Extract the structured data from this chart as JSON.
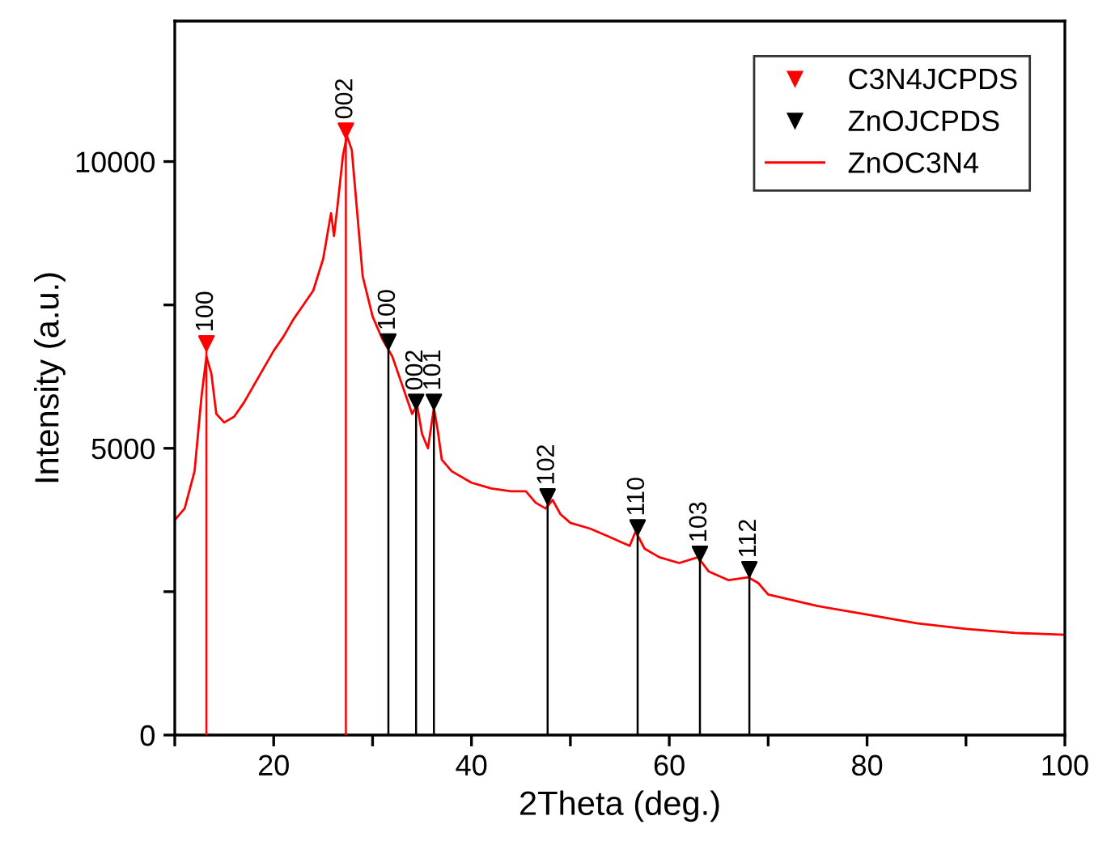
{
  "chart_data": {
    "type": "line",
    "xlabel": "2Theta (deg.)",
    "ylabel": "Intensity (a.u.)",
    "xlim": [
      10,
      100
    ],
    "xticks": [
      {
        "value": 10,
        "label": null
      },
      20,
      {
        "value": 30,
        "label": null
      },
      40,
      {
        "value": 50,
        "label": null
      },
      60,
      {
        "value": 70,
        "label": null
      },
      80,
      {
        "value": 90,
        "label": null
      },
      100
    ],
    "ylim": [
      0,
      12450
    ],
    "yticks": [
      0,
      {
        "value": 2500,
        "label": null
      },
      5000,
      {
        "value": 7500,
        "label": null
      },
      10000
    ],
    "grid": false,
    "legend": "top right",
    "series": [
      {
        "name": "C3N4JCPDS",
        "type": "lollipop",
        "marker": "triangle",
        "color": "#ff0000",
        "x": [
          13.2,
          27.3
        ],
        "values": [
          6830,
          10540
        ]
      },
      {
        "name": "ZnOJCPDS",
        "type": "lollipop",
        "marker": "triangle",
        "color": "#000000",
        "x": [
          31.6,
          34.4,
          36.2,
          47.7,
          56.8,
          63.1,
          68.1
        ],
        "values": [
          6860,
          5810,
          5810,
          4160,
          3620,
          3160,
          2890
        ]
      },
      {
        "name": "ZnOC3N4",
        "marker": "none",
        "color": "#ff0000",
        "x": [
          10,
          11,
          12,
          12.7,
          13.2,
          13.7,
          14.2,
          15,
          16,
          17,
          18,
          19,
          20,
          21,
          22,
          23,
          24,
          25,
          25.8,
          26.1,
          26.5,
          27,
          27.4,
          27.9,
          28.5,
          29,
          30,
          31,
          32,
          33,
          34,
          34.5,
          35,
          35.6,
          36.2,
          36.6,
          37,
          38,
          40,
          42,
          44,
          45.5,
          46.5,
          47.5,
          48.2,
          49,
          50,
          52,
          54,
          56,
          56.6,
          57.5,
          59,
          61,
          62.9,
          64,
          66,
          68,
          69,
          70,
          75,
          80,
          85,
          90,
          95,
          100
        ],
        "values": [
          3750,
          3950,
          4600,
          5900,
          6600,
          6300,
          5600,
          5450,
          5550,
          5800,
          6100,
          6400,
          6700,
          6950,
          7250,
          7500,
          7750,
          8300,
          9100,
          8700,
          9300,
          10100,
          10450,
          10200,
          9000,
          8000,
          7300,
          6900,
          6600,
          6100,
          5600,
          5750,
          5250,
          5000,
          5700,
          5300,
          4800,
          4600,
          4400,
          4300,
          4250,
          4250,
          4050,
          3950,
          4100,
          3850,
          3700,
          3600,
          3450,
          3300,
          3550,
          3250,
          3100,
          3000,
          3100,
          2850,
          2700,
          2750,
          2650,
          2450,
          2250,
          2100,
          1950,
          1850,
          1780,
          1750
        ]
      }
    ],
    "annotations": [
      {
        "text": "100",
        "x": 13.2,
        "y": 6830
      },
      {
        "text": "002",
        "x": 27.3,
        "y": 10540
      },
      {
        "text": "100",
        "x": 31.6,
        "y": 6860
      },
      {
        "text": "002",
        "x": 34.4,
        "y": 5810
      },
      {
        "text": "101",
        "x": 36.2,
        "y": 5810
      },
      {
        "text": "102",
        "x": 47.7,
        "y": 4160
      },
      {
        "text": "110",
        "x": 56.8,
        "y": 3620
      },
      {
        "text": "103",
        "x": 63.1,
        "y": 3160
      },
      {
        "text": "112",
        "x": 68.1,
        "y": 2890
      }
    ]
  }
}
